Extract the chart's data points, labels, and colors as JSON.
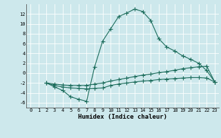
{
  "xlabel": "Humidex (Indice chaleur)",
  "ylabel": "",
  "bg_color": "#cde8ec",
  "line_color": "#1a6b5a",
  "grid_color": "#ffffff",
  "xlim": [
    -0.5,
    23.5
  ],
  "ylim": [
    -7,
    14
  ],
  "yticks": [
    -6,
    -4,
    -2,
    0,
    2,
    4,
    6,
    8,
    10,
    12
  ],
  "xticks": [
    0,
    1,
    2,
    3,
    4,
    5,
    6,
    7,
    8,
    9,
    10,
    11,
    12,
    13,
    14,
    15,
    16,
    17,
    18,
    19,
    20,
    21,
    22,
    23
  ],
  "line1_x": [
    2,
    3,
    4,
    5,
    6,
    7,
    8,
    9,
    10,
    11,
    12,
    13,
    14,
    15,
    16,
    17,
    18,
    19,
    20,
    21,
    22,
    23
  ],
  "line1_y": [
    -2.0,
    -2.8,
    -3.5,
    -4.8,
    -5.3,
    -5.7,
    1.3,
    6.5,
    9.0,
    11.5,
    12.2,
    13.0,
    12.5,
    10.7,
    7.0,
    5.3,
    4.5,
    3.5,
    2.8,
    2.0,
    0.5,
    -1.8
  ],
  "line2_x": [
    2,
    3,
    4,
    5,
    6,
    7,
    8,
    9,
    10,
    11,
    12,
    13,
    14,
    15,
    16,
    17,
    18,
    19,
    20,
    21,
    22,
    23
  ],
  "line2_y": [
    -2.0,
    -2.5,
    -2.8,
    -3.0,
    -3.1,
    -3.2,
    -3.1,
    -3.0,
    -2.5,
    -2.2,
    -2.0,
    -1.8,
    -1.6,
    -1.5,
    -1.3,
    -1.2,
    -1.1,
    -1.0,
    -0.9,
    -0.9,
    -1.0,
    -1.8
  ],
  "line3_x": [
    2,
    3,
    4,
    5,
    6,
    7,
    8,
    9,
    10,
    11,
    12,
    13,
    14,
    15,
    16,
    17,
    18,
    19,
    20,
    21,
    22,
    23
  ],
  "line3_y": [
    -2.0,
    -2.2,
    -2.4,
    -2.5,
    -2.5,
    -2.5,
    -2.2,
    -2.0,
    -1.6,
    -1.3,
    -1.0,
    -0.7,
    -0.4,
    -0.2,
    0.1,
    0.3,
    0.6,
    0.9,
    1.1,
    1.3,
    1.4,
    -1.8
  ],
  "marker": "+",
  "markersize": 4,
  "linewidth": 0.8,
  "tick_fontsize": 5,
  "xlabel_fontsize": 6.5
}
